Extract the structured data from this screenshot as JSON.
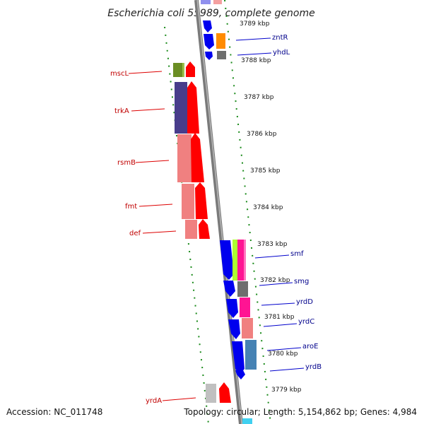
{
  "title": "Escherichia coli 55989, complete genome",
  "footer": {
    "accession": "Accession: NC_011748",
    "summary": "Topology: circular; Length: 5,154,862 bp; Genes: 4,984"
  },
  "scale_labels": [
    "3789 kbp",
    "3788 kbp",
    "3787 kbp",
    "3786 kbp",
    "3785 kbp",
    "3784 kbp",
    "3783 kbp",
    "3782 kbp",
    "3781 kbp",
    "3780 kbp",
    "3779 kbp"
  ],
  "genes_left_strand": [
    {
      "name": "mscL",
      "color": "#6b8e23"
    },
    {
      "name": "trkA",
      "color": "#483d8b"
    },
    {
      "name": "rsmB",
      "color": "#f08080"
    },
    {
      "name": "fmt",
      "color": "#f08080"
    },
    {
      "name": "def",
      "color": "#f08080"
    },
    {
      "name": "yrdA",
      "color": "#c0c0c0"
    }
  ],
  "genes_right_strand": [
    {
      "name": "zntR",
      "color": "#ff8c00"
    },
    {
      "name": "yhdL",
      "color": "#808080"
    },
    {
      "name": "smf",
      "color": "#ff1493"
    },
    {
      "name": "smg",
      "color": "#808080"
    },
    {
      "name": "yrdD",
      "color": "#ff1493"
    },
    {
      "name": "yrdC",
      "color": "#f08080"
    },
    {
      "name": "aroE",
      "color": "#4682b4"
    },
    {
      "name": "yrdB",
      "color": "#4682b4"
    }
  ],
  "cds_forward_color": "#ff0000",
  "cds_reverse_color": "#0000ee"
}
